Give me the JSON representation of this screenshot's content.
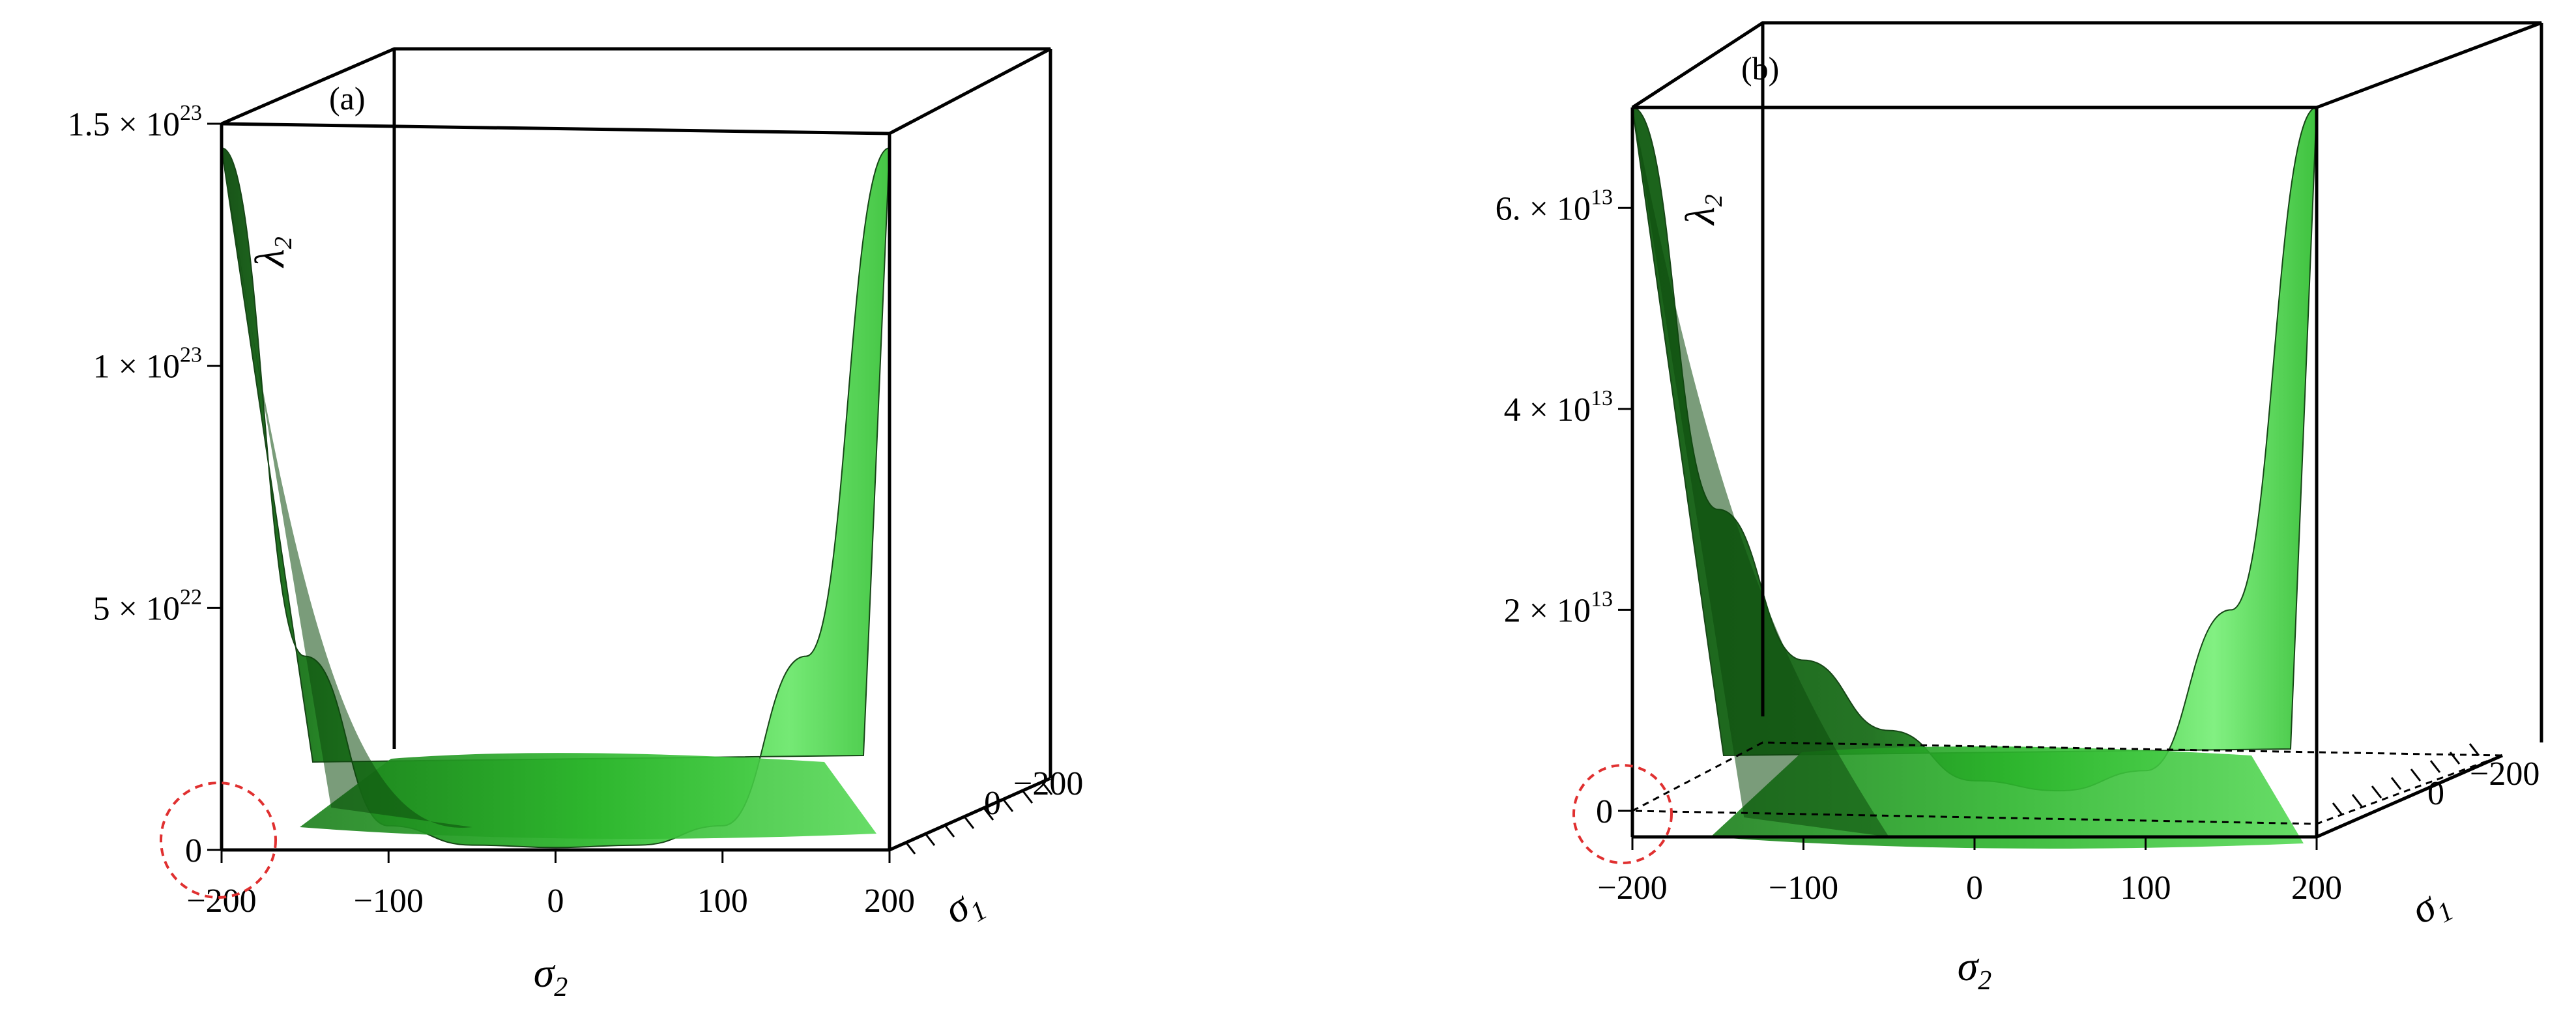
{
  "chart_data": [
    {
      "panel": "(a)",
      "type": "surface3d",
      "zlabel": "λ2",
      "xlabel": "σ2",
      "ylabel": "σ1",
      "x_ticks": [
        -200,
        -100,
        0,
        100,
        200
      ],
      "y_ticks": [
        0,
        -200
      ],
      "z_ticks": [
        {
          "value": 0,
          "mant": "0",
          "exp": ""
        },
        {
          "value": 5e+22,
          "mant": "5 × 10",
          "exp": "22"
        },
        {
          "value": 1e+23,
          "mant": "1 × 10",
          "exp": "23"
        },
        {
          "value": 1.5e+23,
          "mant": "1.5 × 10",
          "exp": "23"
        }
      ],
      "xlim": [
        -200,
        200
      ],
      "ylim": [
        -200,
        200
      ],
      "zlim": [
        0,
        1.5e+23
      ],
      "surface_color": "#2fb82f",
      "surface_profile": {
        "sigma2": [
          -200,
          -150,
          -100,
          -50,
          0,
          50,
          100,
          150,
          200
        ],
        "lambda2": [
          1.45e+23,
          4e+22,
          5e+21,
          1e+21,
          5e+20,
          1e+21,
          5e+21,
          4e+22,
          1.45e+23
        ]
      }
    },
    {
      "panel": "(b)",
      "type": "surface3d",
      "zlabel": "λ2",
      "xlabel": "σ2",
      "ylabel": "σ1",
      "x_ticks": [
        -200,
        -100,
        0,
        100,
        200
      ],
      "y_ticks": [
        0,
        -200
      ],
      "z_ticks": [
        {
          "value": 0,
          "mant": "0",
          "exp": ""
        },
        {
          "value": 20000000000000.0,
          "mant": "2 × 10",
          "exp": "13"
        },
        {
          "value": 40000000000000.0,
          "mant": "4 × 10",
          "exp": "13"
        },
        {
          "value": 60000000000000.0,
          "mant": "6. × 10",
          "exp": "13"
        }
      ],
      "xlim": [
        -200,
        200
      ],
      "ylim": [
        -200,
        200
      ],
      "zlim": [
        0,
        70000000000000.0
      ],
      "surface_color": "#2fb82f",
      "surface_profile": {
        "sigma2": [
          -200,
          -150,
          -100,
          -50,
          0,
          50,
          100,
          150,
          200
        ],
        "lambda2": [
          70000000000000.0,
          30000000000000.0,
          15000000000000.0,
          8000000000000.0,
          3000000000000.0,
          2000000000000.0,
          4000000000000.0,
          20000000000000.0,
          70000000000000.0
        ]
      }
    }
  ]
}
